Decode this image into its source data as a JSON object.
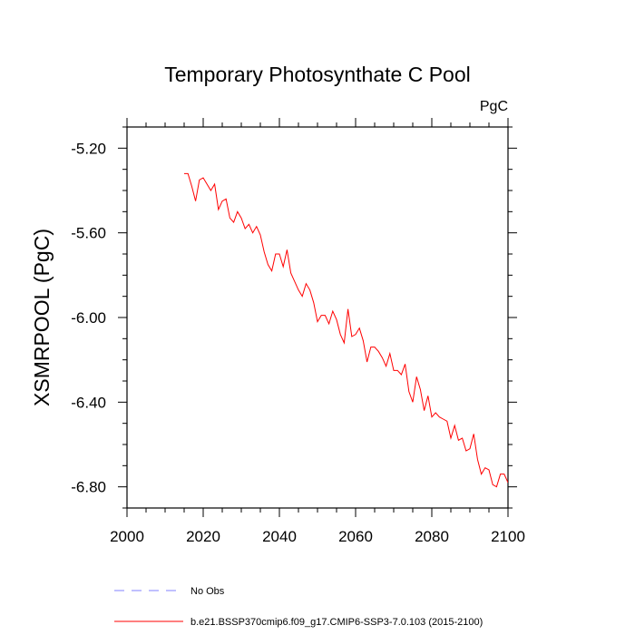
{
  "chart_data": {
    "type": "line",
    "title": "Temporary Photosynthate C Pool",
    "units_label": "PgC",
    "xlabel": "",
    "ylabel": "XSMRPOOL  (PgC)",
    "xlim": [
      2000,
      2100
    ],
    "ylim": [
      -6.9,
      -5.1
    ],
    "x_ticks": [
      2000,
      2020,
      2040,
      2060,
      2080,
      2100
    ],
    "x_tick_labels": [
      "2000",
      "2020",
      "2040",
      "2060",
      "2080",
      "2100"
    ],
    "y_ticks": [
      -5.2,
      -5.6,
      -6.0,
      -6.4,
      -6.8
    ],
    "y_tick_labels": [
      "-5.20",
      "-5.60",
      "-6.00",
      "-6.40",
      "-6.80"
    ],
    "grid": false,
    "legend_position": "bottom",
    "series": [
      {
        "name": "b.e21.BSSP370cmip6.f09_g17.CMIP6-SSP3-7.0.103 (2015-2100)",
        "color": "#ff0000",
        "dash": "solid",
        "x": [
          2015,
          2016,
          2017,
          2018,
          2019,
          2020,
          2021,
          2022,
          2023,
          2024,
          2025,
          2026,
          2027,
          2028,
          2029,
          2030,
          2031,
          2032,
          2033,
          2034,
          2035,
          2036,
          2037,
          2038,
          2039,
          2040,
          2041,
          2042,
          2043,
          2044,
          2045,
          2046,
          2047,
          2048,
          2049,
          2050,
          2051,
          2052,
          2053,
          2054,
          2055,
          2056,
          2057,
          2058,
          2059,
          2060,
          2061,
          2062,
          2063,
          2064,
          2065,
          2066,
          2067,
          2068,
          2069,
          2070,
          2071,
          2072,
          2073,
          2074,
          2075,
          2076,
          2077,
          2078,
          2079,
          2080,
          2081,
          2082,
          2083,
          2084,
          2085,
          2086,
          2087,
          2088,
          2089,
          2090,
          2091,
          2092,
          2093,
          2094,
          2095,
          2096,
          2097,
          2098,
          2099,
          2100
        ],
        "values": [
          -5.32,
          -5.32,
          -5.38,
          -5.45,
          -5.35,
          -5.34,
          -5.37,
          -5.4,
          -5.37,
          -5.49,
          -5.45,
          -5.44,
          -5.53,
          -5.55,
          -5.5,
          -5.53,
          -5.58,
          -5.56,
          -5.6,
          -5.57,
          -5.61,
          -5.69,
          -5.75,
          -5.78,
          -5.7,
          -5.7,
          -5.76,
          -5.68,
          -5.79,
          -5.83,
          -5.87,
          -5.9,
          -5.84,
          -5.87,
          -5.93,
          -6.02,
          -5.99,
          -5.99,
          -6.03,
          -5.97,
          -6.01,
          -6.08,
          -6.12,
          -5.96,
          -6.09,
          -6.08,
          -6.05,
          -6.11,
          -6.21,
          -6.14,
          -6.14,
          -6.16,
          -6.19,
          -6.23,
          -6.17,
          -6.25,
          -6.25,
          -6.27,
          -6.22,
          -6.35,
          -6.4,
          -6.28,
          -6.34,
          -6.44,
          -6.37,
          -6.47,
          -6.45,
          -6.47,
          -6.48,
          -6.49,
          -6.57,
          -6.51,
          -6.58,
          -6.57,
          -6.63,
          -6.62,
          -6.55,
          -6.67,
          -6.74,
          -6.71,
          -6.72,
          -6.79,
          -6.8,
          -6.74,
          -6.74,
          -6.78
        ]
      }
    ],
    "observations": {
      "name": "No Obs",
      "color": "#8080ff",
      "dash": "dashed"
    }
  }
}
